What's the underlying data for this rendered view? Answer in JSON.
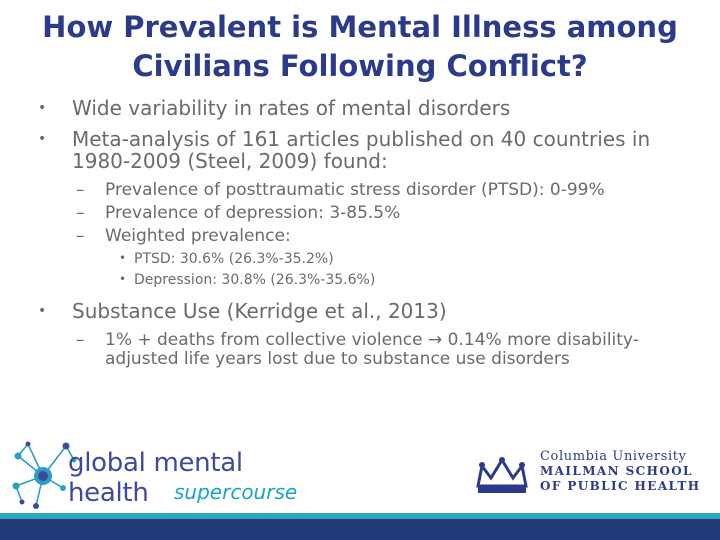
{
  "title": {
    "line1": "How Prevalent is Mental Illness among",
    "line2": "Civilians Following Conflict?"
  },
  "bullets": {
    "b1": "Wide variability in rates of mental disorders",
    "b2": "Meta-analysis of 161 articles published on 40 countries in 1980-2009 (Steel, 2009) found:",
    "b2_sub1": "Prevalence of posttraumatic stress disorder (PTSD): 0-99%",
    "b2_sub2": "Prevalence of depression: 3-85.5%",
    "b2_sub3": "Weighted prevalence:",
    "b2_sub3_a": "PTSD: 30.6% (26.3%-35.2%)",
    "b2_sub3_b": "Depression: 30.8% (26.3%-35.6%)",
    "b3": "Substance Use (Kerridge et al., 2013)",
    "b3_sub1": "1% + deaths from collective violence → 0.14% more disability-adjusted life years lost due to substance use disorders"
  },
  "logos": {
    "gmh_line1": "global mental health",
    "gmh_line2": "supercourse",
    "cu_line1": "Columbia University",
    "cu_line2": "MAILMAN SCHOOL",
    "cu_line3": "OF PUBLIC HEALTH"
  },
  "colors": {
    "title": "#2b3a8a",
    "body_text": "#6a6a6a",
    "teal_bar": "#2aa6c0",
    "navy_bar": "#233a78"
  },
  "icons": {
    "level1_bullet": "bullet-dot",
    "level2_bullet": "en-dash",
    "level3_bullet": "bullet-dot-small",
    "gmh_logo": "globe-network-icon",
    "columbia_logo": "crown-icon"
  }
}
